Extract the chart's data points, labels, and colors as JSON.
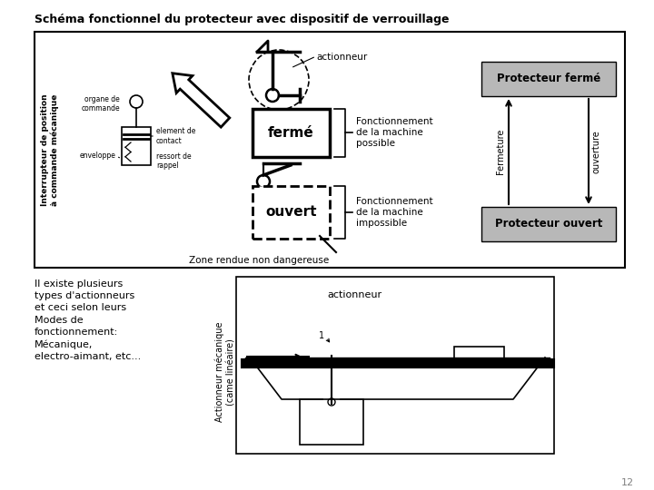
{
  "title": "Schéma fonctionnel du protecteur avec dispositif de verrouillage",
  "bg_color": "#ffffff",
  "box_bg": "#b8b8b8",
  "box1_text": "Protecteur fermé",
  "box2_text": "Protecteur ouvert",
  "arrow1_label": "Fermeture",
  "arrow2_label": "ouverture",
  "text_ferme": "fermé",
  "text_ouvert": "ouvert",
  "text_actionneur": "actionneur",
  "text_actionneur2": "actionneur",
  "text_fonct1": "Fonctionnement\nde la machine\npossible",
  "text_fonct2": "Fonctionnement\nde la machine\nimpossible",
  "text_zone": "Zone rendue non dangereuse",
  "text_interrupteur": "Interrupteur de position\nà commande mécanique",
  "text_organe": "organe de\ncommande",
  "text_element": "element de\ncontact",
  "text_enveloppe": "enveloppe",
  "text_ressort": "ressort de\nrappel",
  "text_il_existe": "Il existe plusieurs\ntypes d'actionneurs\net ceci selon leurs\nModes de\nfonctionnement:\nMécanique,\nelectro-aimant, etc...",
  "text_actionneur_mec": "Actionneur mécanique\n(came linéaire)",
  "page_num": "12"
}
